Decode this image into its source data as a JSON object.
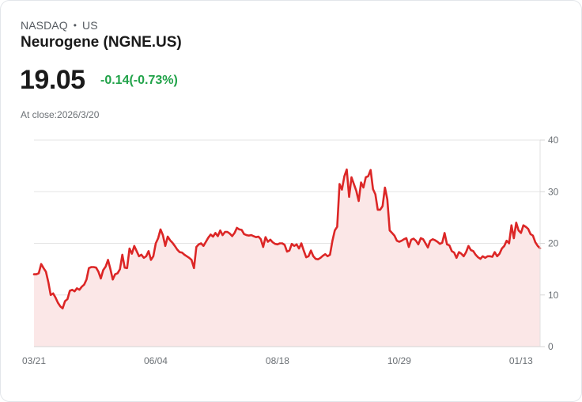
{
  "header": {
    "exchange": "NASDAQ",
    "separator": "•",
    "region": "US",
    "title": "Neurogene (NGNE.US)",
    "price": "19.05",
    "change": "-0.14(-0.73%)",
    "close_info": "At close:2026/3/20"
  },
  "colors": {
    "line": "#dc2626",
    "fill": "#fbe7e7",
    "change_text": "#22a34a",
    "grid": "#e5e5e5"
  },
  "chart_data": {
    "type": "area",
    "title": "Neurogene (NGNE.US)",
    "xlabel": "",
    "ylabel": "",
    "ylim": [
      0,
      40
    ],
    "yticks": [
      0,
      10,
      20,
      30,
      40
    ],
    "y_axis_position": "right",
    "grid": true,
    "legend": "none",
    "x_tick_labels": [
      "03/21",
      "06/04",
      "08/18",
      "10/29",
      "01/13"
    ],
    "x_tick_index": [
      0,
      51,
      102,
      153,
      204
    ],
    "series": [
      {
        "name": "NGNE.US close",
        "values": [
          14.0,
          14.0,
          14.2,
          16.0,
          15.2,
          14.5,
          12.5,
          10.0,
          10.3,
          9.5,
          8.5,
          7.8,
          7.4,
          8.8,
          9.2,
          10.8,
          11.0,
          10.7,
          11.3,
          11.0,
          11.6,
          12.0,
          13.0,
          15.2,
          15.4,
          15.4,
          15.3,
          14.5,
          13.2,
          14.8,
          15.5,
          16.8,
          15.0,
          13.0,
          14.0,
          14.2,
          15.0,
          17.8,
          15.3,
          15.2,
          19.0,
          18.0,
          19.5,
          18.5,
          17.5,
          17.8,
          17.2,
          17.5,
          18.5,
          16.8,
          17.5,
          20.0,
          21.0,
          22.7,
          21.6,
          19.5,
          21.3,
          20.6,
          20.1,
          19.5,
          18.8,
          18.3,
          18.2,
          17.8,
          17.5,
          17.2,
          16.8,
          15.2,
          19.3,
          19.8,
          20.0,
          19.5,
          20.3,
          21.1,
          21.7,
          21.3,
          22.0,
          21.4,
          22.5,
          21.6,
          22.2,
          22.2,
          21.9,
          21.4,
          22.0,
          23.0,
          22.7,
          22.6,
          21.8,
          21.6,
          21.5,
          21.6,
          21.4,
          21.2,
          21.3,
          20.8,
          19.3,
          21.2,
          20.3,
          20.7,
          20.2,
          19.9,
          19.8,
          20.0,
          20.0,
          19.7,
          18.4,
          18.6,
          19.9,
          19.5,
          19.8,
          19.0,
          20.0,
          18.6,
          17.3,
          17.5,
          18.6,
          17.5,
          17.0,
          16.9,
          17.2,
          17.6,
          17.9,
          17.5,
          17.8,
          20.5,
          22.5,
          23.2,
          31.5,
          30.4,
          33.0,
          34.3,
          29.0,
          32.8,
          31.5,
          30.2,
          28.2,
          31.8,
          30.8,
          32.8,
          33.0,
          34.2,
          30.5,
          29.5,
          26.5,
          26.5,
          27.2,
          30.8,
          28.5,
          22.5,
          22.0,
          21.5,
          20.5,
          20.3,
          20.5,
          20.8,
          21.0,
          19.3,
          20.7,
          20.9,
          20.5,
          19.8,
          21.0,
          20.8,
          20.0,
          19.2,
          20.5,
          20.8,
          20.6,
          20.3,
          19.9,
          20.1,
          22.0,
          19.8,
          19.6,
          18.5,
          18.2,
          17.2,
          18.3,
          18.0,
          17.5,
          18.3,
          19.5,
          18.7,
          18.5,
          17.8,
          17.3,
          17.0,
          17.5,
          17.2,
          17.5,
          17.5,
          17.4,
          18.3,
          17.5,
          18.0,
          19.0,
          19.5,
          20.5,
          20.0,
          23.5,
          21.0,
          24.0,
          22.5,
          22.0,
          23.5,
          23.2,
          22.8,
          21.8,
          21.5,
          20.2,
          19.5,
          19.05
        ]
      }
    ]
  }
}
